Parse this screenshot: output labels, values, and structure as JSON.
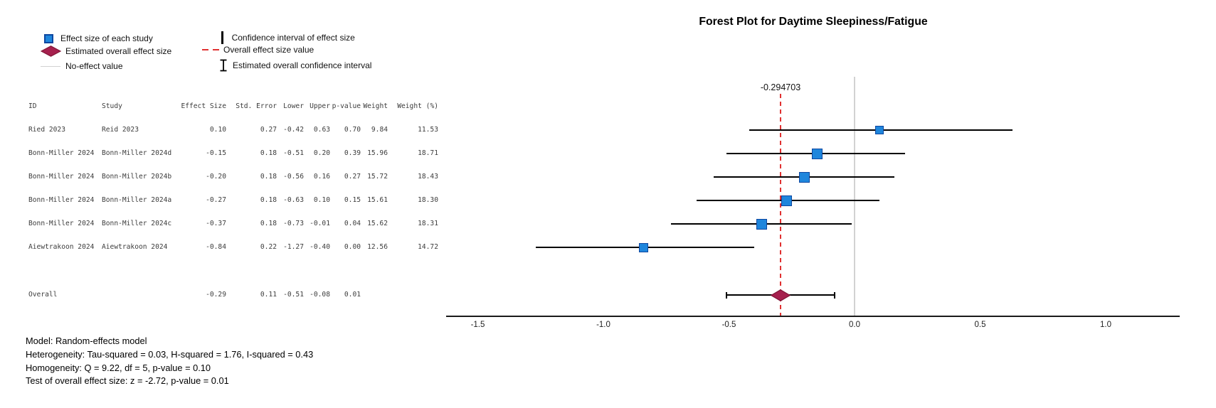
{
  "title": "Forest Plot for Daytime Sleepiness/Fatigue",
  "legend": {
    "left": [
      {
        "icon": "study-square-icon",
        "label": "Effect size of each study"
      },
      {
        "icon": "overall-diamond-icon",
        "label": "Estimated overall effect size"
      },
      {
        "icon": "no-effect-line-icon",
        "label": "No-effect value"
      }
    ],
    "right": [
      {
        "icon": "ci-line-icon",
        "label": "Confidence interval of effect size"
      },
      {
        "icon": "dashed-line-icon",
        "label": "Overall effect size value"
      },
      {
        "icon": "overall-ci-icon",
        "label": "Estimated overall confidence interval"
      }
    ]
  },
  "table": {
    "headers": [
      "ID",
      "Study",
      "Effect Size",
      "Std. Error",
      "Lower",
      "Upper",
      "p-value",
      "Weight",
      "Weight (%)"
    ],
    "rows": [
      {
        "id": "Ried 2023",
        "study": "Reid 2023",
        "cells": [
          "0.10",
          "0.27",
          "-0.42",
          "0.63",
          "0.70",
          "9.84",
          "11.53"
        ]
      },
      {
        "id": "Bonn-Miller 2024",
        "study": "Bonn-Miller 2024d",
        "cells": [
          "-0.15",
          "0.18",
          "-0.51",
          "0.20",
          "0.39",
          "15.96",
          "18.71"
        ]
      },
      {
        "id": "Bonn-Miller 2024",
        "study": "Bonn-Miller 2024b",
        "cells": [
          "-0.20",
          "0.18",
          "-0.56",
          "0.16",
          "0.27",
          "15.72",
          "18.43"
        ]
      },
      {
        "id": "Bonn-Miller 2024",
        "study": "Bonn-Miller 2024a",
        "cells": [
          "-0.27",
          "0.18",
          "-0.63",
          "0.10",
          "0.15",
          "15.61",
          "18.30"
        ]
      },
      {
        "id": "Bonn-Miller 2024",
        "study": "Bonn-Miller 2024c",
        "cells": [
          "-0.37",
          "0.18",
          "-0.73",
          "-0.01",
          "0.04",
          "15.62",
          "18.31"
        ]
      },
      {
        "id": "Aiewtrakoon 2024",
        "study": "Aiewtrakoon 2024",
        "cells": [
          "-0.84",
          "0.22",
          "-1.27",
          "-0.40",
          "0.00",
          "12.56",
          "14.72"
        ]
      }
    ],
    "overall_row": {
      "id": "Overall",
      "study": "",
      "cells": [
        "-0.29",
        "0.11",
        "-0.51",
        "-0.08",
        "0.01",
        "",
        ""
      ]
    }
  },
  "chart_data": {
    "type": "forest",
    "title": "Forest Plot for Daytime Sleepiness/Fatigue",
    "studies": [
      {
        "id": "Ried 2023",
        "study": "Reid 2023",
        "effect": 0.1,
        "std_error": 0.27,
        "lower": -0.42,
        "upper": 0.63,
        "p_value": 0.7,
        "weight": 9.84,
        "weight_pct": 11.53
      },
      {
        "id": "Bonn-Miller 2024",
        "study": "Bonn-Miller 2024d",
        "effect": -0.15,
        "std_error": 0.18,
        "lower": -0.51,
        "upper": 0.2,
        "p_value": 0.39,
        "weight": 15.96,
        "weight_pct": 18.71
      },
      {
        "id": "Bonn-Miller 2024",
        "study": "Bonn-Miller 2024b",
        "effect": -0.2,
        "std_error": 0.18,
        "lower": -0.56,
        "upper": 0.16,
        "p_value": 0.27,
        "weight": 15.72,
        "weight_pct": 18.43
      },
      {
        "id": "Bonn-Miller 2024",
        "study": "Bonn-Miller 2024a",
        "effect": -0.27,
        "std_error": 0.18,
        "lower": -0.63,
        "upper": 0.1,
        "p_value": 0.15,
        "weight": 15.61,
        "weight_pct": 18.3
      },
      {
        "id": "Bonn-Miller 2024",
        "study": "Bonn-Miller 2024c",
        "effect": -0.37,
        "std_error": 0.18,
        "lower": -0.73,
        "upper": -0.01,
        "p_value": 0.04,
        "weight": 15.62,
        "weight_pct": 18.31
      },
      {
        "id": "Aiewtrakoon 2024",
        "study": "Aiewtrakoon 2024",
        "effect": -0.84,
        "std_error": 0.22,
        "lower": -1.27,
        "upper": -0.4,
        "p_value": 0.0,
        "weight": 12.56,
        "weight_pct": 14.72
      }
    ],
    "overall": {
      "label": "Overall",
      "effect": -0.29,
      "std_error": 0.11,
      "lower": -0.51,
      "upper": -0.08,
      "p_value": 0.01
    },
    "overall_effect_value": -0.294703,
    "overall_annotation": "-0.294703",
    "no_effect_value": 0.0,
    "x_ticks": [
      -1.5,
      -1.0,
      -0.5,
      0.0,
      0.5,
      1.0
    ],
    "x_tick_labels": [
      "-1.5",
      "-1.0",
      "-0.5",
      "0.0",
      "0.5",
      "1.0"
    ],
    "xlim": [
      -1.63,
      1.3
    ],
    "grid": false,
    "legend_position": "top-left"
  },
  "stats_lines": [
    "Model: Random-effects model",
    "Heterogeneity: Tau-squared = 0.03, H-squared = 1.76, I-squared = 0.43",
    "Homogeneity: Q = 9.22, df = 5, p-value = 0.10",
    "Test of overall effect size: z = -2.72, p-value = 0.01"
  ],
  "colors": {
    "study_fill": "#1F86DC",
    "study_border": "#0D47A1",
    "overall_fill": "#A6204E",
    "overall_border": "#821638",
    "dashed_line": "#E03131",
    "no_effect_line": "#D2D2D2",
    "ci_line": "#000000",
    "axis_line": "#1a1a1a"
  }
}
